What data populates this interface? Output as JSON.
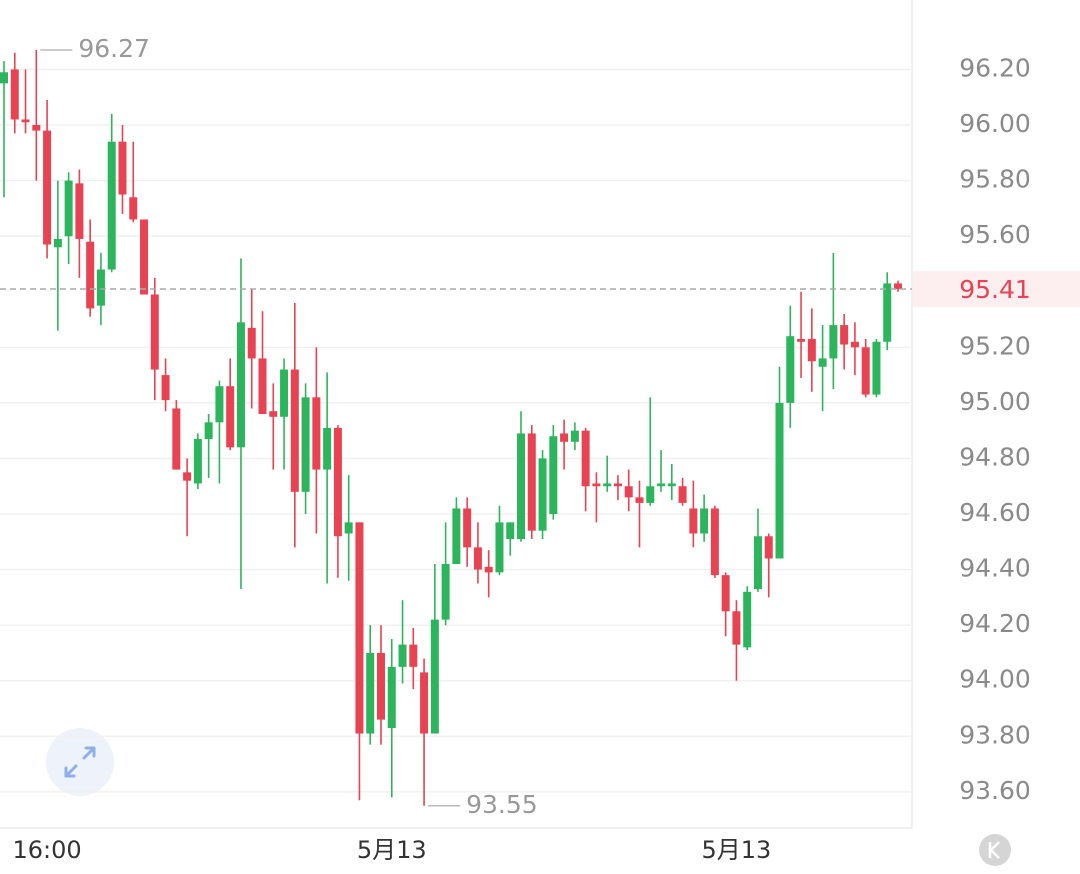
{
  "chart_data": {
    "type": "candlestick",
    "categories": [
      null,
      null,
      null,
      null,
      "16:00",
      null,
      null,
      null,
      null,
      null,
      null,
      null,
      null,
      null,
      null,
      null,
      null,
      null,
      null,
      null,
      null,
      null,
      null,
      null,
      null,
      null,
      null,
      null,
      null,
      null,
      null,
      null,
      null,
      null,
      null,
      null,
      "5月13",
      null,
      null,
      null,
      null,
      null,
      null,
      null,
      null,
      null,
      null,
      null,
      null,
      null,
      null,
      null,
      null,
      null,
      null,
      null,
      null,
      null,
      null,
      null,
      null,
      null,
      null,
      null,
      null,
      null,
      null,
      null,
      "5月13",
      null,
      null,
      null,
      null,
      null,
      null,
      null,
      null,
      null,
      null,
      null,
      null,
      null,
      null,
      null
    ],
    "open": [
      96.15,
      96.2,
      96.02,
      96.0,
      95.98,
      95.56,
      95.6,
      95.79,
      95.58,
      95.35,
      95.48,
      95.94,
      95.74,
      95.66,
      95.39,
      95.1,
      94.98,
      94.75,
      94.71,
      94.87,
      94.93,
      95.06,
      94.84,
      95.27,
      95.16,
      94.97,
      94.95,
      95.12,
      94.68,
      95.02,
      94.76,
      94.91,
      94.53,
      94.57,
      93.81,
      94.1,
      93.83,
      94.05,
      94.13,
      94.03,
      93.81,
      94.22,
      94.42,
      94.62,
      94.48,
      94.41,
      94.39,
      94.51,
      94.51,
      94.89,
      94.54,
      94.6,
      94.89,
      94.86,
      94.9,
      94.71,
      94.7,
      94.71,
      94.7,
      94.66,
      94.64,
      94.7,
      94.7,
      94.7,
      94.62,
      94.53,
      94.62,
      94.38,
      94.25,
      94.12,
      94.33,
      94.52,
      94.44,
      95.0,
      95.23,
      95.23,
      95.13,
      95.16,
      95.28,
      95.22,
      95.2,
      95.03,
      95.22,
      95.43
    ],
    "high": [
      96.23,
      96.26,
      96.2,
      96.27,
      96.09,
      95.8,
      95.83,
      95.84,
      95.66,
      95.54,
      96.04,
      96.0,
      95.94,
      95.66,
      95.45,
      95.16,
      95.01,
      94.8,
      94.89,
      94.96,
      95.08,
      95.16,
      95.52,
      95.41,
      95.33,
      95.07,
      95.16,
      95.36,
      95.07,
      95.2,
      95.11,
      94.92,
      94.74,
      94.57,
      94.2,
      94.2,
      94.15,
      94.29,
      94.19,
      94.08,
      94.42,
      94.57,
      94.66,
      94.66,
      94.57,
      94.47,
      94.63,
      94.57,
      94.97,
      94.92,
      94.83,
      94.92,
      94.94,
      94.93,
      94.91,
      94.75,
      94.81,
      94.74,
      94.76,
      94.72,
      95.02,
      94.83,
      94.78,
      94.73,
      94.72,
      94.67,
      94.63,
      94.39,
      94.29,
      94.34,
      94.62,
      94.53,
      95.13,
      95.35,
      95.4,
      95.34,
      95.28,
      95.54,
      95.32,
      95.29,
      95.23,
      95.23,
      95.47,
      95.44
    ],
    "low": [
      95.74,
      95.97,
      95.97,
      95.8,
      95.52,
      95.26,
      95.5,
      95.45,
      95.31,
      95.28,
      95.47,
      95.68,
      95.65,
      95.39,
      95.01,
      94.97,
      94.76,
      94.52,
      94.69,
      94.73,
      94.71,
      94.83,
      94.33,
      94.98,
      94.96,
      94.76,
      94.76,
      94.48,
      94.6,
      94.53,
      94.35,
      94.37,
      94.36,
      93.57,
      93.77,
      93.77,
      93.58,
      93.99,
      93.97,
      93.55,
      93.81,
      94.2,
      94.42,
      94.41,
      94.35,
      94.3,
      94.38,
      94.45,
      94.5,
      94.51,
      94.51,
      94.58,
      94.76,
      94.83,
      94.61,
      94.57,
      94.68,
      94.65,
      94.61,
      94.48,
      94.63,
      94.68,
      94.65,
      94.63,
      94.48,
      94.5,
      94.37,
      94.16,
      94.0,
      94.11,
      94.32,
      94.3,
      94.44,
      94.91,
      95.09,
      95.04,
      94.97,
      95.05,
      95.12,
      95.1,
      95.02,
      95.02,
      95.19,
      95.4
    ],
    "close": [
      96.19,
      96.02,
      96.01,
      95.98,
      95.57,
      95.59,
      95.8,
      95.59,
      95.34,
      95.48,
      95.94,
      95.75,
      95.66,
      95.39,
      95.12,
      95.01,
      94.76,
      94.72,
      94.87,
      94.93,
      95.06,
      94.84,
      95.29,
      95.16,
      94.96,
      94.95,
      95.12,
      94.68,
      95.02,
      94.76,
      94.91,
      94.52,
      94.57,
      93.81,
      94.1,
      93.86,
      94.05,
      94.13,
      94.05,
      93.81,
      94.22,
      94.42,
      94.62,
      94.48,
      94.4,
      94.39,
      94.57,
      94.57,
      94.89,
      94.54,
      94.8,
      94.88,
      94.86,
      94.9,
      94.7,
      94.7,
      94.71,
      94.7,
      94.66,
      94.64,
      94.7,
      94.71,
      94.71,
      94.64,
      94.53,
      94.62,
      94.38,
      94.25,
      94.13,
      94.32,
      94.52,
      94.44,
      95.0,
      95.24,
      95.22,
      95.15,
      95.16,
      95.28,
      95.21,
      95.2,
      95.03,
      95.22,
      95.43,
      95.41
    ],
    "up_color": "#2db55d",
    "down_color": "#e84352",
    "ylim": [
      93.47,
      96.45
    ],
    "yticks": [
      {
        "value": 93.6,
        "label": "93.60"
      },
      {
        "value": 93.8,
        "label": "93.80"
      },
      {
        "value": 94.0,
        "label": "94.00"
      },
      {
        "value": 94.2,
        "label": "94.20"
      },
      {
        "value": 94.4,
        "label": "94.40"
      },
      {
        "value": 94.6,
        "label": "94.60"
      },
      {
        "value": 94.8,
        "label": "94.80"
      },
      {
        "value": 95.0,
        "label": "95.00"
      },
      {
        "value": 95.2,
        "label": "95.20"
      },
      {
        "value": 95.6,
        "label": "95.60"
      },
      {
        "value": 95.8,
        "label": "95.80"
      },
      {
        "value": 96.0,
        "label": "96.00"
      },
      {
        "value": 96.2,
        "label": "96.20"
      }
    ],
    "grid": true,
    "annotations": [
      96.27,
      93.55
    ],
    "current_price": 95.41,
    "current_price_color": "#e84352"
  }
}
